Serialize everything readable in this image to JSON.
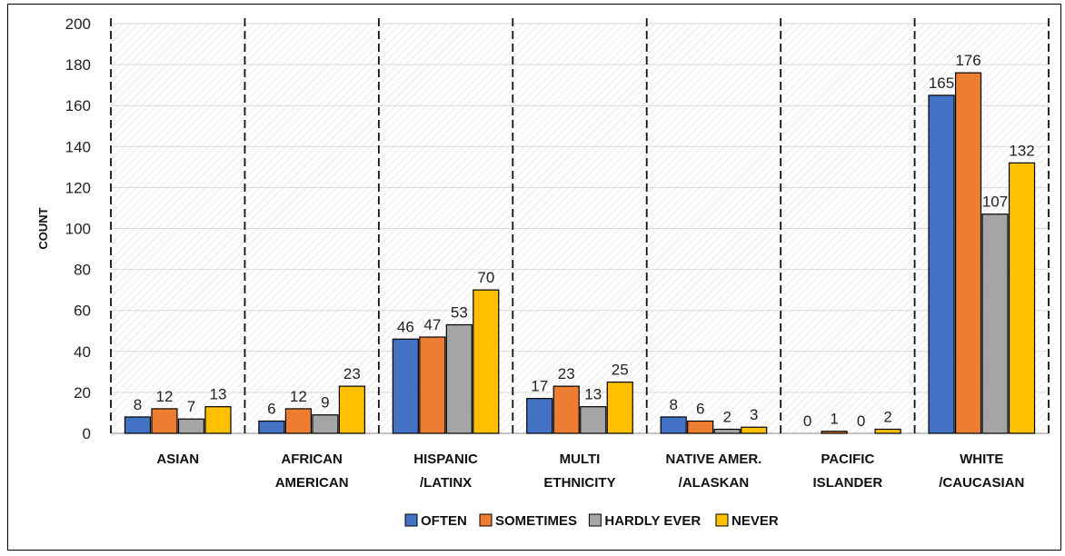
{
  "chart_data": {
    "type": "bar",
    "title": "",
    "xlabel": "",
    "ylabel": "COUNT",
    "ylim": [
      0,
      200
    ],
    "yticks": [
      0,
      20,
      40,
      60,
      80,
      100,
      120,
      140,
      160,
      180,
      200
    ],
    "grid": true,
    "legend_position": "bottom",
    "categories": [
      [
        "ASIAN"
      ],
      [
        "AFRICAN",
        "AMERICAN"
      ],
      [
        "HISPANIC",
        "/LATINX"
      ],
      [
        "MULTI",
        "ETHNICITY"
      ],
      [
        "NATIVE AMER.",
        "/ALASKAN"
      ],
      [
        "PACIFIC",
        "ISLANDER"
      ],
      [
        "WHITE",
        "/CAUCASIAN"
      ]
    ],
    "series": [
      {
        "name": "OFTEN",
        "color": "#4472C4",
        "values": [
          8,
          6,
          46,
          17,
          8,
          0,
          165
        ]
      },
      {
        "name": "SOMETIMES",
        "color": "#ED7D31",
        "values": [
          12,
          12,
          47,
          23,
          6,
          1,
          176
        ]
      },
      {
        "name": "HARDLY EVER",
        "color": "#A5A5A5",
        "values": [
          7,
          9,
          53,
          13,
          2,
          0,
          107
        ]
      },
      {
        "name": "NEVER",
        "color": "#FFC000",
        "values": [
          13,
          23,
          70,
          25,
          3,
          2,
          132
        ]
      }
    ]
  }
}
